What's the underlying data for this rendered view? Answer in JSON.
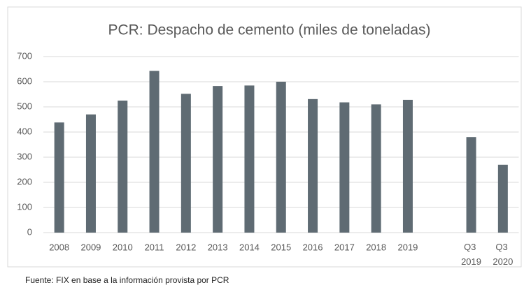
{
  "chart_data": {
    "type": "bar",
    "title": "PCR: Despacho de cemento (miles de toneladas)",
    "categories": [
      "2008",
      "2009",
      "2010",
      "2011",
      "2012",
      "2013",
      "2014",
      "2015",
      "2016",
      "2017",
      "2018",
      "2019",
      null,
      "Q3 2019",
      "Q3 2020"
    ],
    "values": [
      438,
      470,
      525,
      643,
      552,
      583,
      585,
      600,
      531,
      518,
      510,
      528,
      null,
      380,
      270
    ],
    "color": "#5f6b73",
    "ylim": [
      0,
      700
    ],
    "yticks": [
      0,
      100,
      200,
      300,
      400,
      500,
      600,
      700
    ],
    "grid": true,
    "source": "Fuente: FIX en base a la información provista por PCR"
  }
}
